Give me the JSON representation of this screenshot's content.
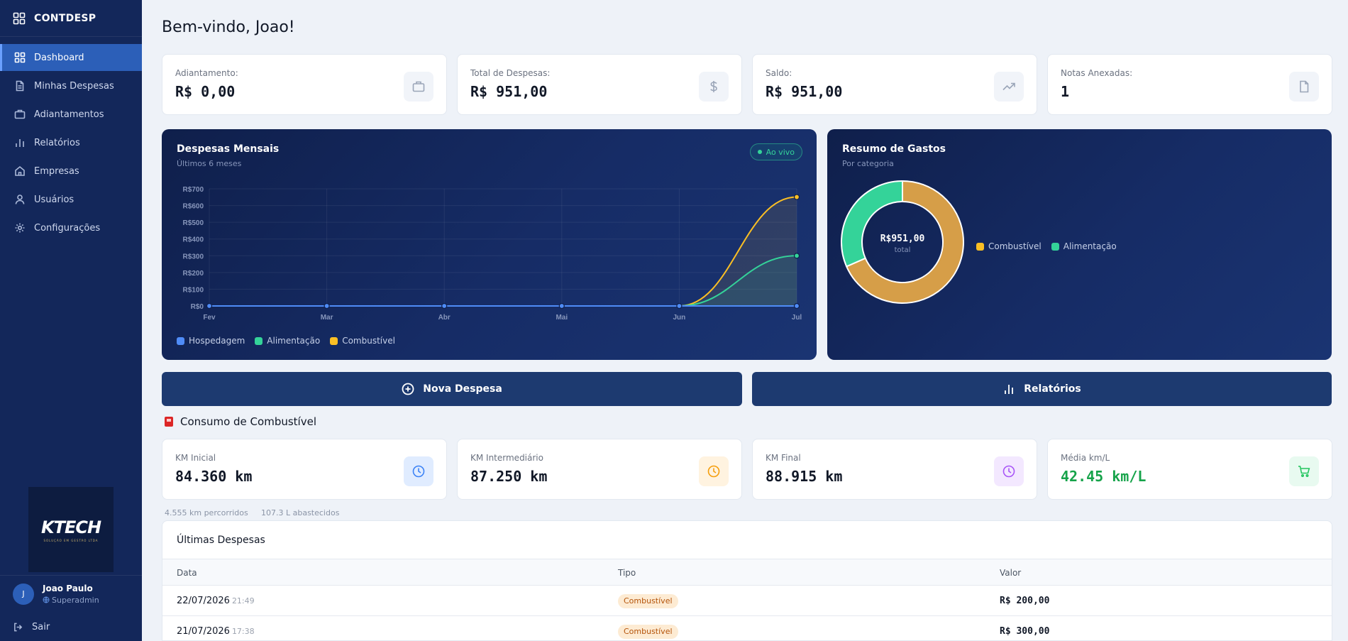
{
  "app": {
    "brand": "CONTDESP"
  },
  "sidebar": {
    "items": [
      {
        "label": "Dashboard",
        "icon": "grid-icon"
      },
      {
        "label": "Minhas Despesas",
        "icon": "file-icon"
      },
      {
        "label": "Adiantamentos",
        "icon": "briefcase-icon"
      },
      {
        "label": "Relatórios",
        "icon": "bar-chart-icon"
      },
      {
        "label": "Empresas",
        "icon": "home-icon"
      },
      {
        "label": "Usuários",
        "icon": "user-icon"
      },
      {
        "label": "Configurações",
        "icon": "gear-icon"
      }
    ],
    "company_logo": {
      "text_main": "KTECH",
      "text_sub": "SOLUÇÃO EM GESTÃO LTDA"
    },
    "user": {
      "initial": "J",
      "name": "Joao Paulo",
      "role": "Superadmin"
    },
    "logout_label": "Sair"
  },
  "header": {
    "welcome": "Bem-vindo, Joao!"
  },
  "stats": [
    {
      "label": "Adiantamento:",
      "value": "R$ 0,00",
      "icon": "briefcase-icon"
    },
    {
      "label": "Total de Despesas:",
      "value": "R$ 951,00",
      "icon": "dollar-icon"
    },
    {
      "label": "Saldo:",
      "value": "R$ 951,00",
      "icon": "trending-up-icon"
    },
    {
      "label": "Notas Anexadas:",
      "value": "1",
      "icon": "document-icon"
    }
  ],
  "monthly_chart": {
    "title": "Despesas Mensais",
    "subtitle": "Últimos 6 meses",
    "live_label": "Ao vivo"
  },
  "summary_chart": {
    "title": "Resumo de Gastos",
    "subtitle": "Por categoria",
    "center_value": "R$951,00",
    "center_label": "total"
  },
  "chart_data": [
    {
      "type": "line",
      "x": [
        "Fev",
        "Mar",
        "Abr",
        "Mai",
        "Jun",
        "Jul"
      ],
      "yticks": [
        "R$0",
        "R$100",
        "R$200",
        "R$300",
        "R$400",
        "R$500",
        "R$600",
        "R$700"
      ],
      "ylim": [
        0,
        700
      ],
      "grid": true,
      "legend_position": "bottom-left",
      "series": [
        {
          "name": "Hospedagem",
          "color": "#4f8cf7",
          "values": [
            0,
            0,
            0,
            0,
            0,
            0
          ]
        },
        {
          "name": "Alimentação",
          "color": "#34d399",
          "values": [
            0,
            0,
            0,
            0,
            0,
            300
          ]
        },
        {
          "name": "Combustível",
          "color": "#fbbf24",
          "values": [
            0,
            0,
            0,
            0,
            0,
            651
          ]
        }
      ]
    },
    {
      "type": "pie",
      "donut": true,
      "legend_position": "right",
      "labels": [
        "Combustível",
        "Alimentação"
      ],
      "values": [
        651,
        300
      ],
      "colors": [
        "#d69e48",
        "#34d399"
      ]
    }
  ],
  "actions": {
    "new_expense": "Nova Despesa",
    "reports": "Relatórios"
  },
  "fuel": {
    "title": "Consumo de Combustível",
    "cards": [
      {
        "label": "KM Inicial",
        "value": "84.360 km",
        "icon": "clock-icon",
        "icon_color": "#3b82f6",
        "icon_bg": "#e0ecff",
        "value_color": "#111827"
      },
      {
        "label": "KM Intermediário",
        "value": "87.250 km",
        "icon": "clock-icon",
        "icon_color": "#f59e0b",
        "icon_bg": "#fff3e0",
        "value_color": "#111827"
      },
      {
        "label": "KM Final",
        "value": "88.915 km",
        "icon": "clock-icon",
        "icon_color": "#a855f7",
        "icon_bg": "#f3e8ff",
        "value_color": "#111827"
      },
      {
        "label": "Média km/L",
        "value": "42.45 km/L",
        "icon": "cart-icon",
        "icon_color": "#22c55e",
        "icon_bg": "#e8faf0",
        "value_color": "#16a34a"
      }
    ],
    "distance_note": "4.555 km percorridos",
    "liters_note": "107.3 L abastecidos"
  },
  "latest": {
    "title": "Últimas Despesas",
    "columns": [
      "Data",
      "Tipo",
      "Valor"
    ],
    "rows": [
      {
        "date": "22/07/2026",
        "time": "21:49",
        "type": "Combustível",
        "value": "R$ 200,00"
      },
      {
        "date": "21/07/2026",
        "time": "17:38",
        "type": "Combustível",
        "value": "R$ 300,00"
      }
    ]
  }
}
